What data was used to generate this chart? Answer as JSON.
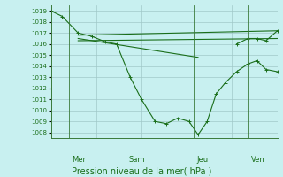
{
  "title": "Pression niveau de la mer( hPa )",
  "bg_color": "#c8f0f0",
  "grid_color": "#a0c8c8",
  "line_color": "#1a6e1a",
  "ylim": [
    1007.5,
    1019.5
  ],
  "yticks": [
    1008,
    1009,
    1010,
    1011,
    1012,
    1013,
    1014,
    1015,
    1016,
    1017,
    1018,
    1019
  ],
  "day_labels": [
    "Mer",
    "Sam",
    "Jeu",
    "Ven"
  ],
  "day_positions": [
    0.08,
    0.33,
    0.63,
    0.87
  ],
  "series1": {
    "x": [
      0,
      0.05,
      0.12,
      0.18,
      0.24,
      0.29,
      0.35,
      0.4,
      0.46,
      0.51,
      0.56,
      0.61,
      0.65,
      0.69,
      0.73,
      0.77,
      0.82,
      0.87,
      0.91,
      0.95,
      1.0
    ],
    "y": [
      1019,
      1018.5,
      1017,
      1016.7,
      1016.2,
      1016.0,
      1013.0,
      1011.0,
      1009.0,
      1008.8,
      1009.3,
      1009.0,
      1007.8,
      1009.0,
      1011.5,
      1012.5,
      1013.5,
      1014.2,
      1014.5,
      1013.7,
      1013.5
    ]
  },
  "series2": {
    "x": [
      0.12,
      1.0
    ],
    "y": [
      1016.8,
      1017.2
    ]
  },
  "series3": {
    "x": [
      0.12,
      0.65
    ],
    "y": [
      1016.5,
      1014.8
    ]
  },
  "series4": {
    "x": [
      0.12,
      1.0
    ],
    "y": [
      1016.3,
      1016.5
    ]
  },
  "right_series": {
    "x": [
      0.82,
      0.87,
      0.91,
      0.95,
      1.0
    ],
    "y": [
      1016.0,
      1016.5,
      1016.5,
      1016.3,
      1017.2
    ]
  }
}
